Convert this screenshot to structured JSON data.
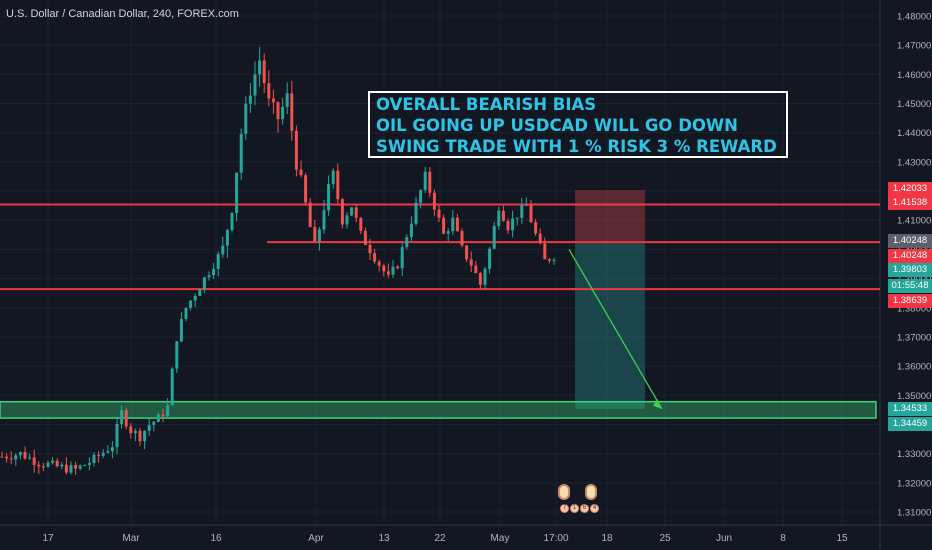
{
  "header": {
    "title": "U.S. Dollar / Canadian Dollar, 240, FOREX.com"
  },
  "annotation": {
    "lines": [
      "OVERALL BEARISH BIAS",
      "OIL GOING UP USDCAD WILL GO DOWN",
      "SWING TRADE WITH 1 % RISK  3 % REWARD"
    ],
    "color": "#2ec4e6"
  },
  "price_tags": [
    {
      "label": "1.42033",
      "color": "#f23645"
    },
    {
      "label": "1.41538",
      "color": "#f23645"
    },
    {
      "label": "1.40248",
      "color": "#5d606b"
    },
    {
      "label": "1.40248",
      "color": "#f23645"
    },
    {
      "label": "1.39803",
      "color": "#26a69a"
    },
    {
      "label": "01:55:48",
      "color": "#26a69a"
    },
    {
      "label": "1.38639",
      "color": "#f23645"
    },
    {
      "label": "1.34533",
      "color": "#26a69a"
    },
    {
      "label": "1.34459",
      "color": "#26a69a"
    }
  ],
  "events": {
    "icon": "calendar-event-icon",
    "labels": [
      "7",
      "1",
      "6",
      "4"
    ]
  },
  "chart_data": {
    "type": "candlestick",
    "title": "U.S. Dollar / Canadian Dollar, 240, FOREX.com",
    "y_ticks": [
      1.48,
      1.47,
      1.46,
      1.45,
      1.44,
      1.43,
      1.42,
      1.41,
      1.4,
      1.39,
      1.38,
      1.37,
      1.36,
      1.35,
      1.34,
      1.33,
      1.32,
      1.31
    ],
    "y_tick_labels": [
      "1.48000",
      "1.47000",
      "1.46000",
      "1.45000",
      "1.44000",
      "1.43000",
      "1.42000",
      "1.41000",
      "1.40000",
      "1.39000",
      "1.38000",
      "1.37000",
      "1.36000",
      "1.35000",
      "1.34000",
      "1.33000",
      "1.32000",
      "1.31000"
    ],
    "ylim": [
      1.305,
      1.485
    ],
    "x_tick_labels": [
      "17",
      "Mar",
      "16",
      "Apr",
      "13",
      "22",
      "May",
      "17:00",
      "18",
      "25",
      "Jun",
      "8",
      "15"
    ],
    "price_path": [
      [
        0,
        1.329
      ],
      [
        4,
        1.33
      ],
      [
        8,
        1.327
      ],
      [
        12,
        1.3255
      ],
      [
        16,
        1.3245
      ],
      [
        20,
        1.328
      ],
      [
        24,
        1.333
      ],
      [
        26,
        1.344
      ],
      [
        28,
        1.338
      ],
      [
        30,
        1.336
      ],
      [
        32,
        1.34
      ],
      [
        34,
        1.342
      ],
      [
        36,
        1.346
      ],
      [
        38,
        1.37
      ],
      [
        40,
        1.38
      ],
      [
        42,
        1.385
      ],
      [
        44,
        1.39
      ],
      [
        46,
        1.395
      ],
      [
        48,
        1.4
      ],
      [
        50,
        1.415
      ],
      [
        52,
        1.44
      ],
      [
        54,
        1.455
      ],
      [
        56,
        1.465
      ],
      [
        58,
        1.45
      ],
      [
        60,
        1.445
      ],
      [
        62,
        1.452
      ],
      [
        64,
        1.43
      ],
      [
        66,
        1.415
      ],
      [
        68,
        1.4
      ],
      [
        70,
        1.415
      ],
      [
        72,
        1.425
      ],
      [
        74,
        1.41
      ],
      [
        76,
        1.415
      ],
      [
        78,
        1.405
      ],
      [
        80,
        1.4
      ],
      [
        82,
        1.395
      ],
      [
        84,
        1.39
      ],
      [
        86,
        1.395
      ],
      [
        88,
        1.405
      ],
      [
        90,
        1.415
      ],
      [
        92,
        1.425
      ],
      [
        94,
        1.415
      ],
      [
        96,
        1.405
      ],
      [
        98,
        1.41
      ],
      [
        100,
        1.4
      ],
      [
        102,
        1.395
      ],
      [
        104,
        1.388
      ],
      [
        106,
        1.4
      ],
      [
        108,
        1.415
      ],
      [
        110,
        1.408
      ],
      [
        112,
        1.412
      ],
      [
        114,
        1.415
      ],
      [
        116,
        1.405
      ],
      [
        118,
        1.396
      ],
      [
        120,
        1.398
      ]
    ],
    "horizontal_lines": [
      {
        "price": 1.41538,
        "color": "#f23645"
      },
      {
        "price": 1.40248,
        "color": "#f23645"
      },
      {
        "price": 1.38639,
        "color": "#f23645"
      }
    ],
    "support_zone": {
      "top": 1.34533,
      "bottom": 1.34459,
      "color": "#3cd47a"
    },
    "position_tool": {
      "entry": 1.40248,
      "stop": 1.42033,
      "target": 1.34533,
      "risk_color": "#b04045",
      "reward_color": "#1f6b6e"
    },
    "projection_arrow": {
      "from_price": 1.4,
      "to_price": 1.34533,
      "color": "#3cd14a"
    },
    "grid": true
  }
}
